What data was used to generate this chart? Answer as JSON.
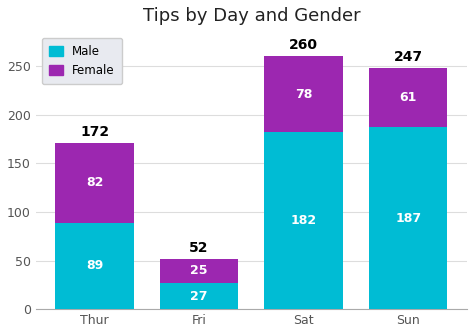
{
  "title": "Tips by Day and Gender",
  "categories": [
    "Thur",
    "Fri",
    "Sat",
    "Sun"
  ],
  "male_values": [
    89,
    27,
    182,
    187
  ],
  "female_values": [
    82,
    25,
    78,
    61
  ],
  "totals": [
    172,
    52,
    260,
    247
  ],
  "male_color": "#00BCD4",
  "female_color": "#9C27B0",
  "fig_bg_color": "#ffffff",
  "plot_bg_color": "#ffffff",
  "legend_bg": "#e8eaf0",
  "ylim": [
    0,
    285
  ],
  "yticks": [
    0,
    50,
    100,
    150,
    200,
    250
  ],
  "bar_width": 0.75,
  "title_fontsize": 13,
  "label_fontsize": 9,
  "tick_fontsize": 9,
  "total_fontsize": 10
}
